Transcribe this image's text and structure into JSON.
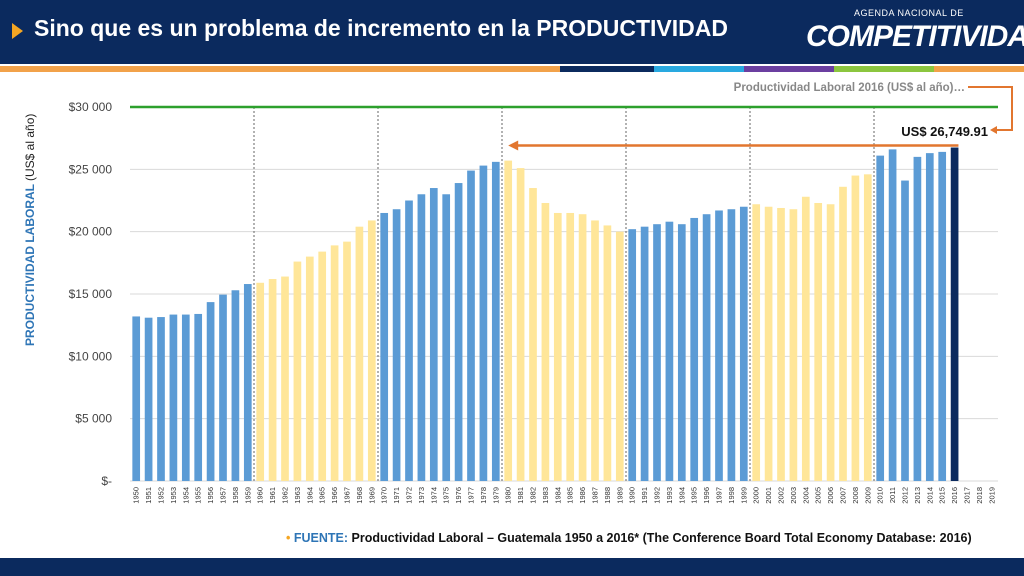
{
  "header": {
    "title": "Sino que es un problema de incremento en la PRODUCTIVIDAD",
    "logo_top": "AGENDA NACIONAL DE",
    "logo_main": "COMPETITIVIDAD",
    "background": "#0b2a5e"
  },
  "source": {
    "bullet": "•",
    "label": "FUENTE:",
    "text": "Productividad Laboral – Guatemala 1950 a 2016* (The Conference Board Total Economy Database: 2016)"
  },
  "chart_data": {
    "type": "bar",
    "ylabel_main": "PRODUCTIVIDAD LABORAL",
    "ylabel_unit": "(US$ al año)",
    "ylim": [
      0,
      30000
    ],
    "yticks": [
      {
        "v": 0,
        "label": "$-"
      },
      {
        "v": 5000,
        "label": "$5 000"
      },
      {
        "v": 10000,
        "label": "$10 000"
      },
      {
        "v": 15000,
        "label": "$15 000"
      },
      {
        "v": 20000,
        "label": "$20 000"
      },
      {
        "v": 25000,
        "label": "$25 000"
      },
      {
        "v": 30000,
        "label": "$30 000"
      }
    ],
    "grid": true,
    "reference_line": {
      "value": 30000,
      "label": "Productividad Laboral 2016 (US$ al año)…",
      "color": "#2ca02c"
    },
    "highlight": {
      "year": "2016",
      "label": "US$ 26,749.91",
      "color": "#0b2a5e"
    },
    "comparison_arrow": {
      "from": "2016",
      "to": "1980",
      "value": 26749.91,
      "color": "#e2762f"
    },
    "decade_dividers": [
      "1960",
      "1970",
      "1980",
      "1990",
      "2000",
      "2010"
    ],
    "colors": {
      "blue": "#5b9bd5",
      "yellow": "#ffe699",
      "highlight": "#0b2a5e"
    },
    "years": [
      "1950",
      "1951",
      "1952",
      "1953",
      "1954",
      "1955",
      "1956",
      "1957",
      "1958",
      "1959",
      "1960",
      "1961",
      "1962",
      "1963",
      "1964",
      "1965",
      "1966",
      "1967",
      "1968",
      "1969",
      "1970",
      "1971",
      "1972",
      "1973",
      "1974",
      "1975",
      "1976",
      "1977",
      "1978",
      "1979",
      "1980",
      "1981",
      "1982",
      "1983",
      "1984",
      "1985",
      "1986",
      "1987",
      "1988",
      "1989",
      "1990",
      "1991",
      "1992",
      "1993",
      "1994",
      "1995",
      "1996",
      "1997",
      "1998",
      "1999",
      "2000",
      "2001",
      "2002",
      "2003",
      "2004",
      "2005",
      "2006",
      "2007",
      "2008",
      "2009",
      "2010",
      "2011",
      "2012",
      "2013",
      "2014",
      "2015",
      "2016",
      "2017",
      "2018",
      "2019"
    ],
    "values": [
      13200,
      13100,
      13150,
      13350,
      13350,
      13400,
      14350,
      14950,
      15300,
      15800,
      15900,
      16200,
      16400,
      17600,
      18000,
      18400,
      18900,
      19200,
      20400,
      20900,
      21500,
      21800,
      22500,
      23000,
      23500,
      23000,
      23900,
      24900,
      25300,
      25600,
      25700,
      25100,
      23500,
      22300,
      21500,
      21500,
      21400,
      20900,
      20500,
      20000,
      20200,
      20400,
      20600,
      20800,
      20600,
      21100,
      21400,
      21700,
      21800,
      22000,
      22200,
      22000,
      21900,
      21800,
      22800,
      22300,
      22200,
      23600,
      24500,
      24600,
      26100,
      26600,
      24100,
      26000,
      26300,
      26400,
      26750,
      null,
      null,
      null
    ],
    "bar_colors": [
      "blue",
      "blue",
      "blue",
      "blue",
      "blue",
      "blue",
      "blue",
      "blue",
      "blue",
      "blue",
      "yellow",
      "yellow",
      "yellow",
      "yellow",
      "yellow",
      "yellow",
      "yellow",
      "yellow",
      "yellow",
      "yellow",
      "blue",
      "blue",
      "blue",
      "blue",
      "blue",
      "blue",
      "blue",
      "blue",
      "blue",
      "blue",
      "yellow",
      "yellow",
      "yellow",
      "yellow",
      "yellow",
      "yellow",
      "yellow",
      "yellow",
      "yellow",
      "yellow",
      "blue",
      "blue",
      "blue",
      "blue",
      "blue",
      "blue",
      "blue",
      "blue",
      "blue",
      "blue",
      "yellow",
      "yellow",
      "yellow",
      "yellow",
      "yellow",
      "yellow",
      "yellow",
      "yellow",
      "yellow",
      "yellow",
      "blue",
      "blue",
      "blue",
      "blue",
      "blue",
      "blue",
      "highlight",
      null,
      null,
      null
    ]
  }
}
